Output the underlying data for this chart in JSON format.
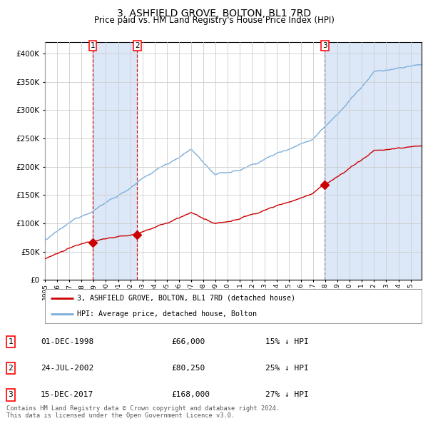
{
  "title": "3, ASHFIELD GROVE, BOLTON, BL1 7RD",
  "subtitle": "Price paid vs. HM Land Registry's House Price Index (HPI)",
  "legend_line1": "3, ASHFIELD GROVE, BOLTON, BL1 7RD (detached house)",
  "legend_line2": "HPI: Average price, detached house, Bolton",
  "footer_line1": "Contains HM Land Registry data © Crown copyright and database right 2024.",
  "footer_line2": "This data is licensed under the Open Government Licence v3.0.",
  "table_rows": [
    {
      "num": "1",
      "date": "01-DEC-1998",
      "price": "£66,000",
      "pct": "15% ↓ HPI"
    },
    {
      "num": "2",
      "date": "24-JUL-2002",
      "price": "£80,250",
      "pct": "25% ↓ HPI"
    },
    {
      "num": "3",
      "date": "15-DEC-2017",
      "price": "£168,000",
      "pct": "27% ↓ HPI"
    }
  ],
  "sale_dates_decimal": [
    1998.917,
    2002.558,
    2017.958
  ],
  "sale_prices": [
    66000,
    80250,
    168000
  ],
  "vline_colors": [
    "#cc0000",
    "#cc0000",
    "#8888bb"
  ],
  "vspan_ranges": [
    [
      1998.917,
      2002.558
    ],
    [
      2017.958,
      2026.0
    ]
  ],
  "vspan_color": "#dce8f8",
  "xlim": [
    1995.0,
    2025.9
  ],
  "ylim": [
    0,
    420000
  ],
  "yticks": [
    0,
    50000,
    100000,
    150000,
    200000,
    250000,
    300000,
    350000,
    400000
  ],
  "xtick_years": [
    1995,
    1996,
    1997,
    1998,
    1999,
    2000,
    2001,
    2002,
    2003,
    2004,
    2005,
    2006,
    2007,
    2008,
    2009,
    2010,
    2011,
    2012,
    2013,
    2014,
    2015,
    2016,
    2017,
    2018,
    2019,
    2020,
    2021,
    2022,
    2023,
    2024,
    2025
  ],
  "hpi_color": "#7aaddb",
  "sold_color": "#cc0000",
  "marker_color": "#cc0000",
  "bg_color": "#ffffff",
  "grid_color": "#cccccc",
  "title_fontsize": 10,
  "subtitle_fontsize": 8.5
}
